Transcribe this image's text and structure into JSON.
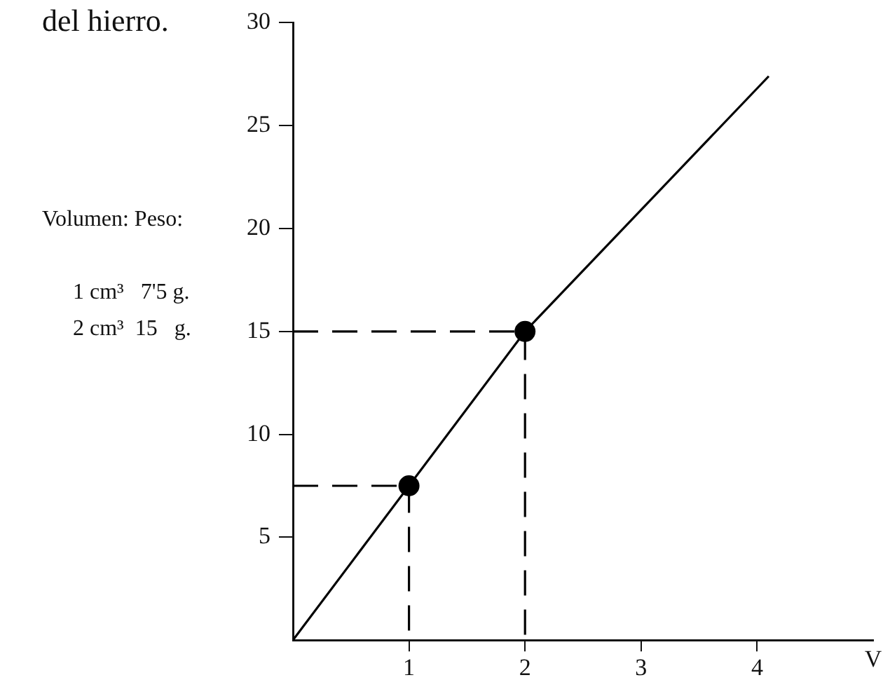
{
  "chart_data": {
    "type": "line",
    "xlabel": "V",
    "xlim": [
      0,
      5
    ],
    "xticks": [
      1,
      2,
      3,
      4
    ],
    "ylim": [
      0,
      30
    ],
    "yticks": [
      5,
      10,
      15,
      20,
      25,
      30
    ],
    "grid": false,
    "legend": false,
    "annotations": [
      "del hierro.",
      "Volumen: Peso:",
      "1 cm³   7'5 g.",
      "2 cm³  15   g."
    ],
    "series": [
      {
        "color": "#000000",
        "x": [
          0,
          1,
          2,
          4.1
        ],
        "values": [
          0,
          7.5,
          15,
          27.4
        ],
        "marker": "none",
        "line_style": "solid"
      },
      {
        "color": "#000000",
        "x": [
          0,
          1,
          1
        ],
        "values": [
          7.5,
          7.5,
          0
        ],
        "marker": "none",
        "line_style": "dashed"
      },
      {
        "color": "#000000",
        "x": [
          0,
          2,
          2
        ],
        "values": [
          15,
          15,
          0
        ],
        "marker": "none",
        "line_style": "dashed"
      },
      {
        "type": "scatter",
        "color": "#000000",
        "x": [
          1,
          2
        ],
        "values": [
          7.5,
          15
        ],
        "marker": "circle"
      }
    ]
  }
}
